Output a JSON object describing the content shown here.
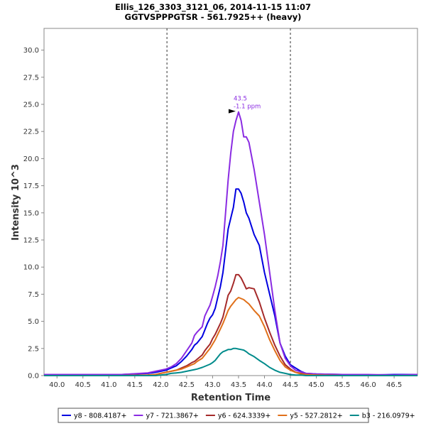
{
  "chart_data": {
    "type": "line",
    "title": "Ellis_126_3303_3121_06, 2014-11-15 11:07",
    "subtitle": "GGTVSPPPGTSR - 561.7925++ (heavy)",
    "xlabel": "Retention Time",
    "ylabel": "Intensity 10^3",
    "xlim": [
      39.75,
      46.95
    ],
    "ylim": [
      0,
      32
    ],
    "x_ticks": [
      40.0,
      40.5,
      41.0,
      41.5,
      42.0,
      42.5,
      43.0,
      43.5,
      44.0,
      44.5,
      45.0,
      45.5,
      46.0,
      46.5
    ],
    "x_tick_labels": [
      "40.0",
      "40.5",
      "41.0",
      "41.5",
      "42.0",
      "42.5",
      "43.0",
      "43.5",
      "44.0",
      "44.5",
      "45.0",
      "45.5",
      "46.0",
      "46.5"
    ],
    "y_ticks": [
      0,
      2.5,
      5,
      7.5,
      10,
      12.5,
      15,
      17.5,
      20,
      22.5,
      25,
      27.5,
      30
    ],
    "y_tick_labels": [
      "0.0",
      "2.5",
      "5.0",
      "7.5",
      "10.0",
      "12.5",
      "15.0",
      "17.5",
      "20.0",
      "22.5",
      "25.0",
      "27.5",
      "30.0"
    ],
    "grid": false,
    "legend_position": "bottom",
    "integration_boundaries": [
      42.12,
      44.5
    ],
    "annotation": {
      "x": 43.5,
      "y": 24.3,
      "line1": "43.5",
      "line2": "-1.1 ppm",
      "color": "#8a2be2"
    },
    "x": [
      39.75,
      40.25,
      40.75,
      41.25,
      41.75,
      41.9,
      42.0,
      42.1,
      42.2,
      42.3,
      42.4,
      42.5,
      42.6,
      42.65,
      42.7,
      42.8,
      42.85,
      42.9,
      42.95,
      43.0,
      43.05,
      43.1,
      43.15,
      43.2,
      43.25,
      43.3,
      43.35,
      43.4,
      43.45,
      43.5,
      43.55,
      43.6,
      43.65,
      43.7,
      43.8,
      43.9,
      44.0,
      44.1,
      44.2,
      44.3,
      44.4,
      44.5,
      44.6,
      44.7,
      44.8,
      45.0,
      45.5,
      46.0,
      46.5,
      46.95
    ],
    "series": [
      {
        "name": "y8 - 808.4187+",
        "color": "#0000e0",
        "values": [
          0.1,
          0.1,
          0.05,
          0.1,
          0.2,
          0.3,
          0.4,
          0.5,
          0.7,
          0.9,
          1.3,
          1.8,
          2.4,
          2.8,
          3.0,
          3.6,
          4.2,
          4.8,
          5.3,
          5.6,
          6.2,
          7.2,
          8.2,
          9.5,
          11.5,
          13.5,
          14.5,
          15.5,
          17.2,
          17.2,
          16.8,
          16.0,
          15.0,
          14.5,
          13.0,
          12.0,
          9.5,
          7.5,
          5.5,
          3.0,
          1.8,
          1.0,
          0.7,
          0.4,
          0.2,
          0.15,
          0.1,
          0.05,
          0.1,
          0.1
        ]
      },
      {
        "name": "y7 - 721.3867+",
        "color": "#8a2be2",
        "values": [
          0.1,
          0.1,
          0.1,
          0.1,
          0.25,
          0.4,
          0.5,
          0.6,
          0.8,
          1.1,
          1.6,
          2.3,
          3.0,
          3.7,
          4.0,
          4.5,
          5.5,
          6.0,
          6.5,
          7.3,
          8.2,
          9.2,
          10.5,
          12.0,
          15.0,
          18.0,
          20.5,
          22.5,
          23.5,
          24.3,
          23.5,
          22.0,
          22.0,
          21.5,
          19.0,
          16.0,
          13.0,
          9.5,
          6.0,
          3.0,
          1.6,
          0.9,
          0.5,
          0.35,
          0.2,
          0.15,
          0.1,
          0.1,
          0.05,
          0.1
        ]
      },
      {
        "name": "y6 - 624.3339+",
        "color": "#a52a2a",
        "values": [
          0,
          0,
          0,
          0,
          0.05,
          0.1,
          0.2,
          0.3,
          0.4,
          0.5,
          0.7,
          0.9,
          1.2,
          1.3,
          1.5,
          1.9,
          2.3,
          2.6,
          2.9,
          3.4,
          3.8,
          4.3,
          4.8,
          5.4,
          6.4,
          7.4,
          7.8,
          8.5,
          9.3,
          9.3,
          9.0,
          8.5,
          8.0,
          8.1,
          8.0,
          6.8,
          5.3,
          4.0,
          2.8,
          1.8,
          1.0,
          0.6,
          0.3,
          0.2,
          0.1,
          0.05,
          0,
          0,
          0,
          0
        ]
      },
      {
        "name": "y5 - 527.2812+",
        "color": "#e0701a",
        "values": [
          0,
          0,
          0,
          0,
          0.05,
          0.1,
          0.2,
          0.3,
          0.4,
          0.5,
          0.6,
          0.8,
          1.0,
          1.1,
          1.3,
          1.6,
          1.9,
          2.2,
          2.5,
          2.9,
          3.3,
          3.8,
          4.3,
          4.8,
          5.4,
          6.0,
          6.4,
          6.7,
          7.0,
          7.2,
          7.1,
          7.0,
          6.8,
          6.6,
          6.0,
          5.5,
          4.5,
          3.3,
          2.3,
          1.4,
          0.8,
          0.5,
          0.3,
          0.15,
          0.1,
          0.05,
          0,
          0,
          0,
          0
        ]
      },
      {
        "name": "b3 - 216.0979+",
        "color": "#008b8b",
        "values": [
          0,
          0,
          0,
          0,
          0,
          0,
          0.05,
          0.1,
          0.2,
          0.25,
          0.3,
          0.4,
          0.5,
          0.55,
          0.6,
          0.75,
          0.85,
          0.95,
          1.05,
          1.2,
          1.4,
          1.7,
          2.0,
          2.2,
          2.3,
          2.4,
          2.4,
          2.5,
          2.5,
          2.45,
          2.4,
          2.35,
          2.2,
          2.0,
          1.75,
          1.4,
          1.1,
          0.75,
          0.5,
          0.3,
          0.2,
          0.1,
          0.05,
          0.05,
          0,
          0,
          0,
          0,
          0,
          0
        ]
      }
    ]
  }
}
